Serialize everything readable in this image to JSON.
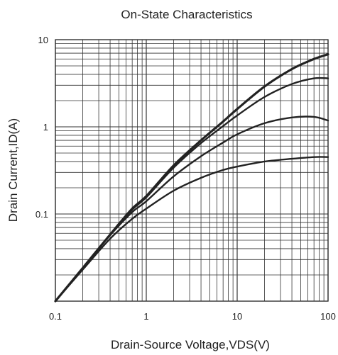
{
  "chart_data": {
    "type": "line",
    "title": "On-State Characteristics",
    "xlabel": "Drain-Source Voltage,VDS(V)",
    "ylabel": "Drain Current,ID(A)",
    "xscale": "log",
    "yscale": "log",
    "xlim": [
      0.1,
      100
    ],
    "ylim": [
      0.01,
      10
    ],
    "grid": true,
    "x_tick_labels": [
      "0.1",
      "1",
      "10",
      "100"
    ],
    "x_tick_values": [
      0.1,
      1,
      10,
      100
    ],
    "y_tick_labels": [
      "0.1",
      "1",
      "10"
    ],
    "y_tick_values": [
      0.1,
      1,
      10
    ],
    "line_color": "#222222",
    "series": [
      {
        "x": [
          0.1,
          0.2,
          0.4,
          0.7,
          1,
          2,
          4,
          7,
          10,
          20,
          40,
          70,
          100
        ],
        "y": [
          0.01,
          0.024,
          0.058,
          0.115,
          0.16,
          0.36,
          0.7,
          1.15,
          1.6,
          2.9,
          4.6,
          6.0,
          6.8
        ]
      },
      {
        "x": [
          0.1,
          0.2,
          0.4,
          0.7,
          1,
          2,
          4,
          7,
          10,
          20,
          40,
          70,
          100
        ],
        "y": [
          0.01,
          0.024,
          0.058,
          0.112,
          0.155,
          0.34,
          0.65,
          1.02,
          1.35,
          2.2,
          3.1,
          3.6,
          3.6
        ]
      },
      {
        "x": [
          0.1,
          0.2,
          0.4,
          0.7,
          1,
          2,
          4,
          7,
          10,
          20,
          40,
          70,
          100
        ],
        "y": [
          0.01,
          0.024,
          0.057,
          0.105,
          0.14,
          0.27,
          0.46,
          0.66,
          0.82,
          1.1,
          1.28,
          1.3,
          1.18
        ]
      },
      {
        "x": [
          0.1,
          0.2,
          0.4,
          0.7,
          1,
          2,
          4,
          7,
          10,
          20,
          40,
          70,
          100
        ],
        "y": [
          0.01,
          0.023,
          0.052,
          0.088,
          0.115,
          0.185,
          0.26,
          0.32,
          0.35,
          0.4,
          0.43,
          0.45,
          0.45
        ]
      }
    ]
  }
}
